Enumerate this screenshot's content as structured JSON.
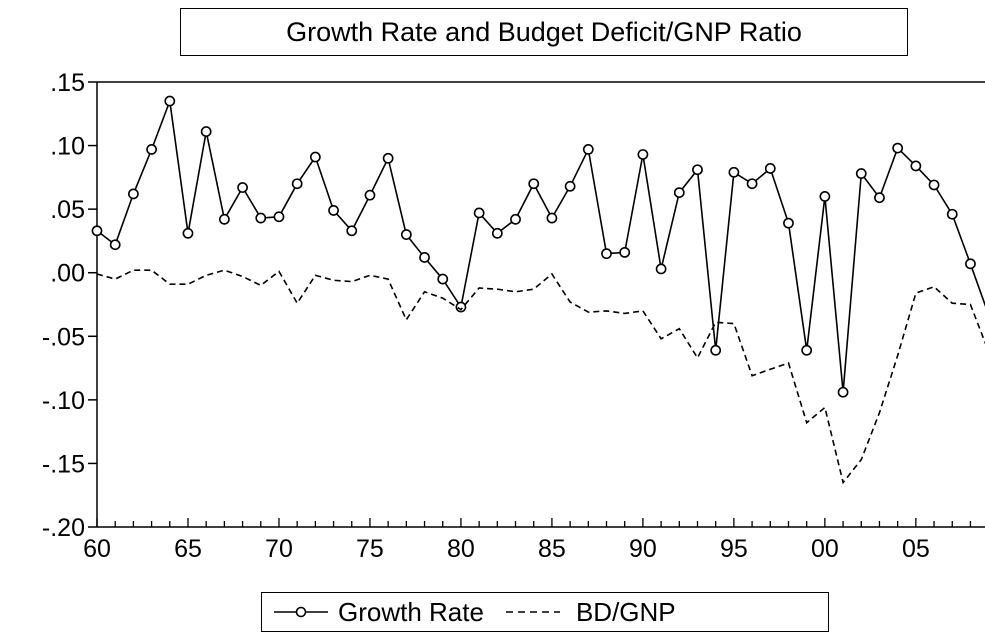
{
  "chart_data": {
    "type": "line",
    "title": "Growth Rate and Budget Deficit/GNP Ratio",
    "xlabel": "",
    "ylabel": "",
    "x_years": [
      1960,
      1961,
      1962,
      1963,
      1964,
      1965,
      1966,
      1967,
      1968,
      1969,
      1970,
      1971,
      1972,
      1973,
      1974,
      1975,
      1976,
      1977,
      1978,
      1979,
      1980,
      1981,
      1982,
      1983,
      1984,
      1985,
      1986,
      1987,
      1988,
      1989,
      1990,
      1991,
      1992,
      1993,
      1994,
      1995,
      1996,
      1997,
      1998,
      1999,
      2000,
      2001,
      2002,
      2003,
      2004,
      2005,
      2006,
      2007,
      2008,
      2009
    ],
    "x_tick_labels": [
      "60",
      "65",
      "70",
      "75",
      "80",
      "85",
      "90",
      "95",
      "00",
      "05"
    ],
    "y_tick_labels": [
      ".15",
      ".10",
      ".05",
      ".00",
      "-.05",
      "-.10",
      "-.15",
      "-.20"
    ],
    "ylim": [
      -0.2,
      0.15
    ],
    "grid": false,
    "legend_position": "bottom",
    "series": [
      {
        "name": "Growth Rate",
        "style": "solid-circle-markers",
        "color": "#000000",
        "values": [
          0.033,
          0.022,
          0.062,
          0.097,
          0.135,
          0.031,
          0.111,
          0.042,
          0.067,
          0.043,
          0.044,
          0.07,
          0.091,
          0.049,
          0.033,
          0.061,
          0.09,
          0.03,
          0.012,
          -0.005,
          -0.027,
          0.047,
          0.031,
          0.042,
          0.07,
          0.043,
          0.068,
          0.097,
          0.015,
          0.016,
          0.093,
          0.003,
          0.063,
          0.081,
          -0.061,
          0.079,
          0.07,
          0.082,
          0.039,
          -0.061,
          0.06,
          -0.094,
          0.078,
          0.059,
          0.098,
          0.084,
          0.069,
          0.046,
          0.007,
          -0.033
        ]
      },
      {
        "name": "BD/GNP",
        "style": "dashed",
        "color": "#000000",
        "values": [
          -0.001,
          -0.005,
          0.002,
          0.002,
          -0.009,
          -0.009,
          -0.002,
          0.002,
          -0.003,
          -0.01,
          0.001,
          -0.024,
          -0.002,
          -0.006,
          -0.007,
          -0.002,
          -0.005,
          -0.037,
          -0.015,
          -0.02,
          -0.029,
          -0.012,
          -0.013,
          -0.015,
          -0.013,
          -0.001,
          -0.023,
          -0.031,
          -0.03,
          -0.032,
          -0.03,
          -0.052,
          -0.044,
          -0.067,
          -0.039,
          -0.04,
          -0.081,
          -0.076,
          -0.071,
          -0.118,
          -0.106,
          -0.165,
          -0.147,
          -0.11,
          -0.065,
          -0.016,
          -0.011,
          -0.024,
          -0.025,
          -0.062
        ]
      }
    ]
  }
}
